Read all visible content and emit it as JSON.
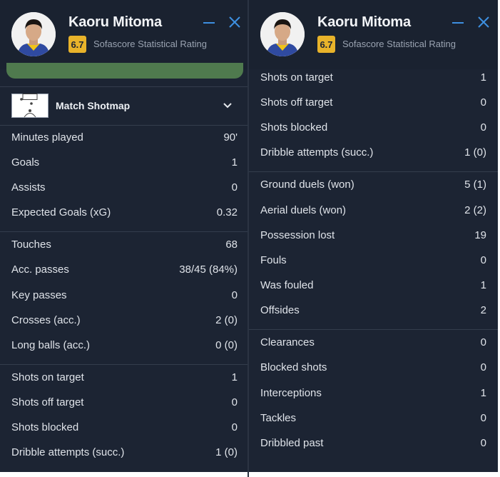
{
  "player": {
    "name": "Kaoru Mitoma",
    "rating": "6.7",
    "rating_label": "Sofascore Statistical Rating"
  },
  "colors": {
    "panel_bg": "#1c2433",
    "rating_bg": "#e8b32a",
    "accent_blue": "#3d8fe0",
    "green_bar": "#4f7a4e"
  },
  "icons": {
    "minimize": "minus-icon",
    "close": "close-icon",
    "shotmap": "pitch-icon",
    "expand": "chevron-down-icon"
  },
  "left": {
    "shotmap_label": "Match Shotmap",
    "groups": [
      [
        {
          "label": "Minutes played",
          "value": "90'"
        },
        {
          "label": "Goals",
          "value": "1"
        },
        {
          "label": "Assists",
          "value": "0"
        },
        {
          "label": "Expected Goals (xG)",
          "value": "0.32"
        }
      ],
      [
        {
          "label": "Touches",
          "value": "68"
        },
        {
          "label": "Acc. passes",
          "value": "38/45 (84%)"
        },
        {
          "label": "Key passes",
          "value": "0"
        },
        {
          "label": "Crosses (acc.)",
          "value": "2 (0)"
        },
        {
          "label": "Long balls (acc.)",
          "value": "0 (0)"
        }
      ],
      [
        {
          "label": "Shots on target",
          "value": "1"
        },
        {
          "label": "Shots off target",
          "value": "0"
        },
        {
          "label": "Shots blocked",
          "value": "0"
        },
        {
          "label": "Dribble attempts (succ.)",
          "value": "1 (0)"
        }
      ]
    ]
  },
  "right": {
    "groups": [
      [
        {
          "label": "Shots on target",
          "value": "1"
        },
        {
          "label": "Shots off target",
          "value": "0"
        },
        {
          "label": "Shots blocked",
          "value": "0"
        },
        {
          "label": "Dribble attempts (succ.)",
          "value": "1 (0)"
        }
      ],
      [
        {
          "label": "Ground duels (won)",
          "value": "5 (1)"
        },
        {
          "label": "Aerial duels (won)",
          "value": "2 (2)"
        },
        {
          "label": "Possession lost",
          "value": "19"
        },
        {
          "label": "Fouls",
          "value": "0"
        },
        {
          "label": "Was fouled",
          "value": "1"
        },
        {
          "label": "Offsides",
          "value": "2"
        }
      ],
      [
        {
          "label": "Clearances",
          "value": "0"
        },
        {
          "label": "Blocked shots",
          "value": "0"
        },
        {
          "label": "Interceptions",
          "value": "1"
        },
        {
          "label": "Tackles",
          "value": "0"
        },
        {
          "label": "Dribbled past",
          "value": "0"
        }
      ]
    ]
  }
}
